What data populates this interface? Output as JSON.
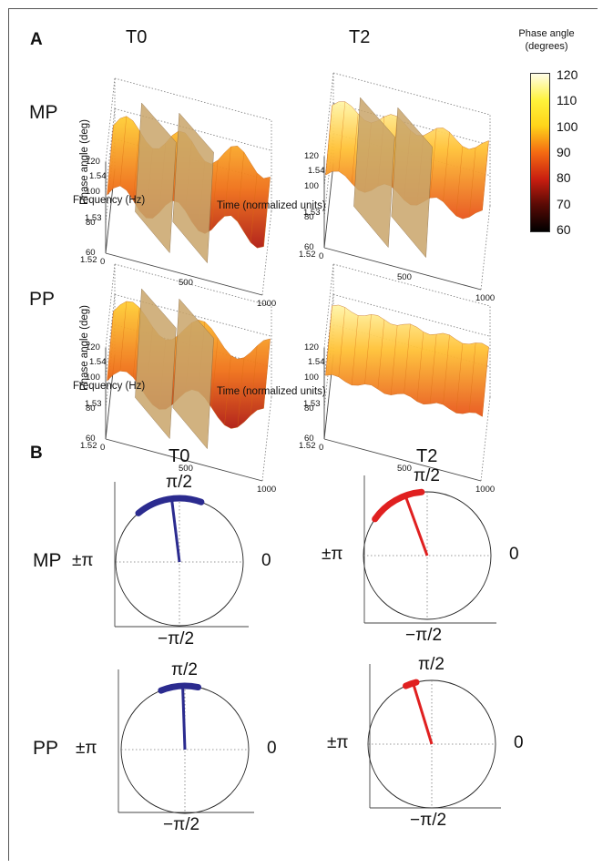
{
  "panelA": {
    "label": "A",
    "col_titles": [
      "T0",
      "T2"
    ],
    "row_labels": [
      "MP",
      "PP"
    ],
    "zlabel": "Phase angle (deg)",
    "xlabel": "Frequency (Hz)",
    "ylabel": "Time (normalized units)",
    "z_ticks": [
      "120",
      "100",
      "80",
      "60"
    ],
    "freq_ticks": [
      "1.54",
      "1.53",
      "1.52"
    ],
    "time_ticks": [
      "0",
      "500",
      "1000"
    ],
    "colorbar": {
      "title_line1": "Phase angle",
      "title_line2": "(degrees)",
      "ticks": [
        "120",
        "110",
        "100",
        "90",
        "80",
        "70",
        "60"
      ]
    }
  },
  "panelB": {
    "label": "B",
    "col_titles": [
      "T0",
      "T2"
    ],
    "row_labels": [
      "MP",
      "PP"
    ],
    "top": "π/2",
    "left": "±π",
    "right": "0",
    "bottom": "−π/2",
    "colors": {
      "T0": "#2b2b8f",
      "T2": "#e02020"
    }
  },
  "chart_data": [
    {
      "type": "surface",
      "panel": "A",
      "row": "MP",
      "column": "T0",
      "zlim": [
        60,
        120
      ],
      "xlim": [
        1.52,
        1.54
      ],
      "ylim": [
        0,
        1000
      ]
    },
    {
      "type": "surface",
      "panel": "A",
      "row": "MP",
      "column": "T2",
      "zlim": [
        60,
        120
      ],
      "xlim": [
        1.52,
        1.54
      ],
      "ylim": [
        0,
        1000
      ]
    },
    {
      "type": "surface",
      "panel": "A",
      "row": "PP",
      "column": "T0",
      "zlim": [
        60,
        120
      ],
      "xlim": [
        1.52,
        1.54
      ],
      "ylim": [
        0,
        1000
      ]
    },
    {
      "type": "surface",
      "panel": "A",
      "row": "PP",
      "column": "T2",
      "zlim": [
        60,
        120
      ],
      "xlim": [
        1.52,
        1.54
      ],
      "ylim": [
        0,
        1000
      ]
    },
    {
      "type": "polar",
      "panel": "B",
      "row": "MP",
      "column": "T0",
      "arc_start_deg": 70,
      "arc_end_deg": 130,
      "mean_angle_deg": 97
    },
    {
      "type": "polar",
      "panel": "B",
      "row": "MP",
      "column": "T2",
      "arc_start_deg": 95,
      "arc_end_deg": 145,
      "mean_angle_deg": 110
    },
    {
      "type": "polar",
      "panel": "B",
      "row": "PP",
      "column": "T0",
      "arc_start_deg": 78,
      "arc_end_deg": 112,
      "mean_angle_deg": 92
    },
    {
      "type": "polar",
      "panel": "B",
      "row": "PP",
      "column": "T2",
      "arc_start_deg": 104,
      "arc_end_deg": 114,
      "mean_angle_deg": 107
    }
  ]
}
